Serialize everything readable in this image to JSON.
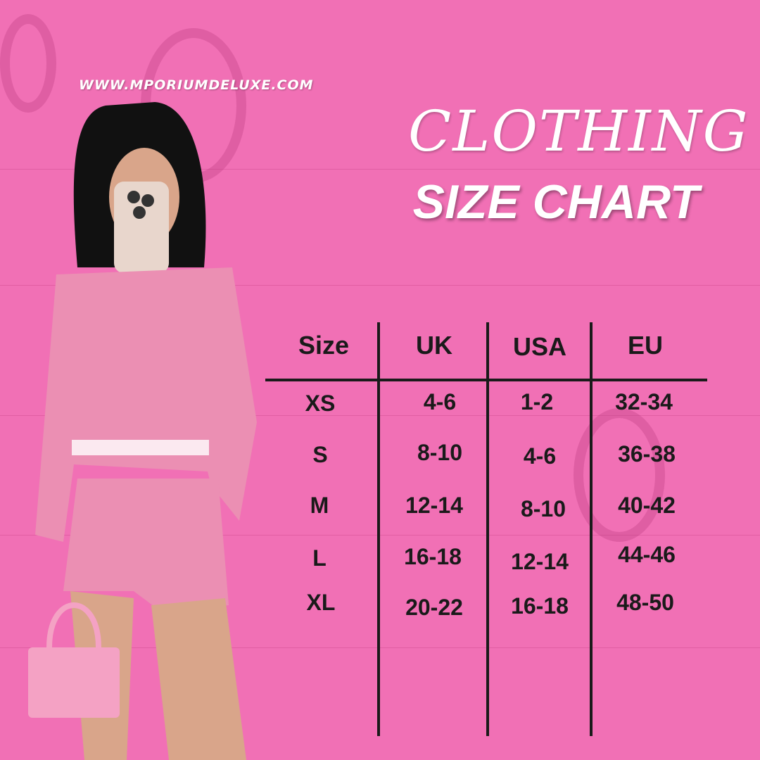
{
  "brand": {
    "url": "WWW.MPORIUMDELUXE.COM"
  },
  "title": {
    "line1": "Clothing",
    "line2": "SIZE CHART"
  },
  "colors": {
    "background": "#f170b5",
    "text": "#1a1a1a",
    "title": "#ffffff"
  },
  "table": {
    "headers": [
      "Size",
      "UK",
      "USA",
      "EU"
    ],
    "rows": [
      [
        "XS",
        "4-6",
        "1-2",
        "32-34"
      ],
      [
        "S",
        "8-10",
        "4-6",
        "36-38"
      ],
      [
        "M",
        "12-14",
        "8-10",
        "40-42"
      ],
      [
        "L",
        "16-18",
        "12-14",
        "44-46"
      ],
      [
        "XL",
        "20-22",
        "16-18",
        "48-50"
      ]
    ]
  }
}
